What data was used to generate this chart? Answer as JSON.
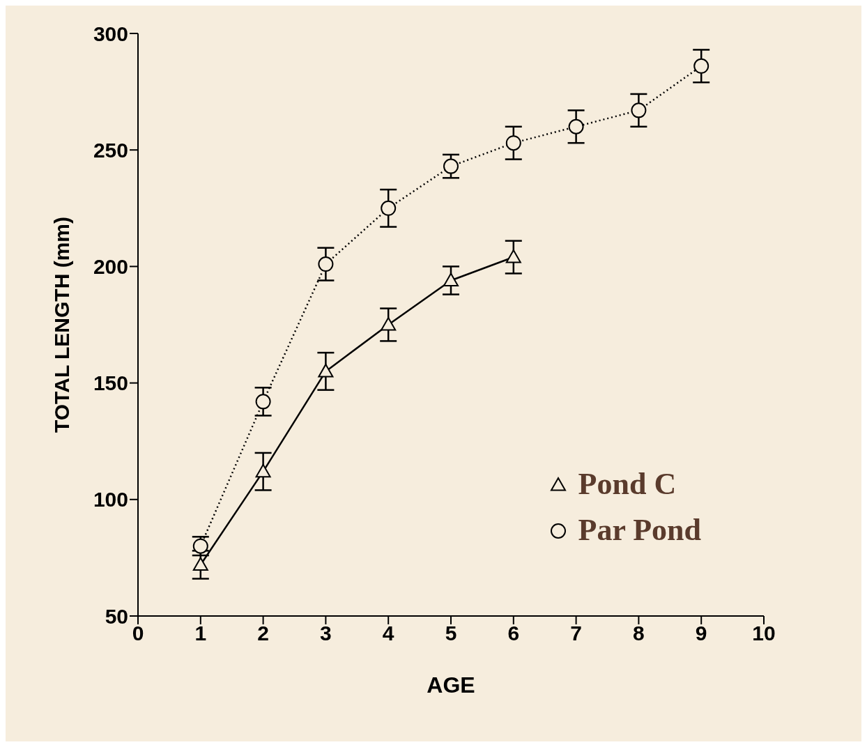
{
  "chart_data": {
    "type": "line",
    "xlabel": "AGE",
    "ylabel": "TOTAL LENGTH (mm)",
    "x": [
      1,
      2,
      3,
      4,
      5,
      6,
      7,
      8,
      9
    ],
    "series": [
      {
        "name": "Pond C",
        "color": "#000000",
        "marker": "triangle",
        "line_style": "solid",
        "values": [
          72,
          112,
          155,
          175,
          194,
          204,
          null,
          null,
          null
        ],
        "errors": [
          6,
          8,
          8,
          7,
          6,
          7,
          null,
          null,
          null
        ]
      },
      {
        "name": "Par Pond",
        "color": "#000000",
        "marker": "circle",
        "line_style": "dotted",
        "values": [
          80,
          142,
          201,
          225,
          243,
          253,
          260,
          267,
          286
        ],
        "errors": [
          4,
          6,
          7,
          8,
          5,
          7,
          7,
          7,
          7
        ]
      }
    ],
    "xlim": [
      0,
      10
    ],
    "xticks": [
      0,
      1,
      2,
      3,
      4,
      5,
      6,
      7,
      8,
      9,
      10
    ],
    "ylim": [
      50,
      300
    ],
    "yticks": [
      50,
      100,
      150,
      200,
      250,
      300
    ],
    "grid": false,
    "legend": "bottom right"
  }
}
